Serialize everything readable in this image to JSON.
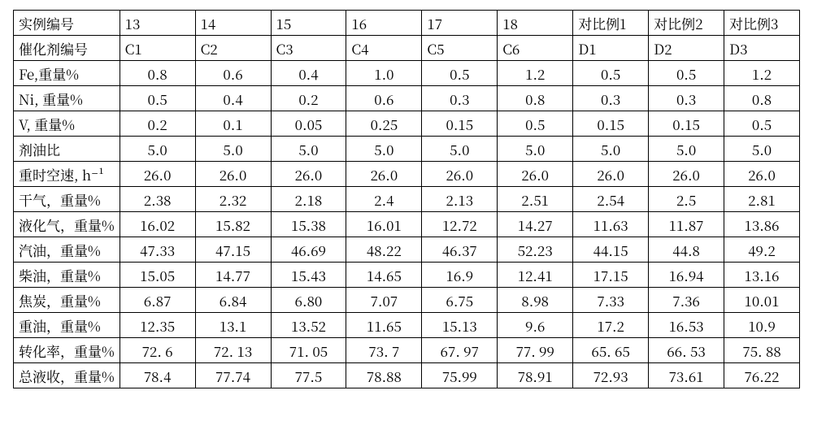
{
  "type": "table",
  "font_family": "SimSun / serif CJK",
  "font_size_pt": 13,
  "border_color": "#000000",
  "background_color": "#ffffff",
  "text_color": "#000000",
  "column_count": 10,
  "column_widths_pct": [
    13.5,
    9.6,
    9.6,
    9.6,
    9.6,
    9.6,
    9.6,
    9.6,
    9.6,
    9.6
  ],
  "column_align": [
    "left",
    "center",
    "center",
    "center",
    "center",
    "center",
    "center",
    "center",
    "center",
    "center"
  ],
  "rows": [
    {
      "label": "实例编号",
      "cells": [
        "13",
        "14",
        "15",
        "16",
        "17",
        "18",
        "对比例1",
        "对比例2",
        "对比例3"
      ],
      "align": "left"
    },
    {
      "label": "催化剂编号",
      "cells": [
        "C1",
        "C2",
        "C3",
        "C4",
        "C5",
        "C6",
        "D1",
        "D2",
        "D3"
      ],
      "align": "left"
    },
    {
      "label": "Fe,重量%",
      "cells": [
        "0.8",
        "0.6",
        "0.4",
        "1.0",
        "0.5",
        "1.2",
        "0.5",
        "0.5",
        "1.2"
      ],
      "align": "center"
    },
    {
      "label": "Ni, 重量%",
      "cells": [
        "0.5",
        "0.4",
        "0.2",
        "0.6",
        "0.3",
        "0.8",
        "0.3",
        "0.3",
        "0.8"
      ],
      "align": "center"
    },
    {
      "label": "V, 重量%",
      "cells": [
        "0.2",
        "0.1",
        "0.05",
        "0.25",
        "0.15",
        "0.5",
        "0.15",
        "0.15",
        "0.5"
      ],
      "align": "center"
    },
    {
      "label": "剂油比",
      "cells": [
        "5.0",
        "5.0",
        "5.0",
        "5.0",
        "5.0",
        "5.0",
        "5.0",
        "5.0",
        "5.0"
      ],
      "align": "center"
    },
    {
      "label": "重时空速, h⁻¹",
      "cells": [
        "26.0",
        "26.0",
        "26.0",
        "26.0",
        "26.0",
        "26.0",
        "26.0",
        "26.0",
        "26.0"
      ],
      "align": "center"
    },
    {
      "label": "干气，重量%",
      "cells": [
        "2.38",
        "2.32",
        "2.18",
        "2.4",
        "2.13",
        "2.51",
        "2.54",
        "2.5",
        "2.81"
      ],
      "align": "center"
    },
    {
      "label": "液化气，重量%",
      "cells": [
        "16.02",
        "15.82",
        "15.38",
        "16.01",
        "12.72",
        "14.27",
        "11.63",
        "11.87",
        "13.86"
      ],
      "align": "center"
    },
    {
      "label": "汽油，重量%",
      "cells": [
        "47.33",
        "47.15",
        "46.69",
        "48.22",
        "46.37",
        "52.23",
        "44.15",
        "44.8",
        "49.2"
      ],
      "align": "center"
    },
    {
      "label": "柴油，重量%",
      "cells": [
        "15.05",
        "14.77",
        "15.43",
        "14.65",
        "16.9",
        "12.41",
        "17.15",
        "16.94",
        "13.16"
      ],
      "align": "center"
    },
    {
      "label": "焦炭，重量%",
      "cells": [
        "6.87",
        "6.84",
        "6.80",
        "7.07",
        "6.75",
        "8.98",
        "7.33",
        "7.36",
        "10.01"
      ],
      "align": "center"
    },
    {
      "label": "重油，重量%",
      "cells": [
        "12.35",
        "13.1",
        "13.52",
        "11.65",
        "15.13",
        "9.6",
        "17.2",
        "16.53",
        "10.9"
      ],
      "align": "center"
    },
    {
      "label": "转化率，重量%",
      "cells": [
        "72. 6",
        "72. 13",
        "71. 05",
        "73. 7",
        "67. 97",
        "77. 99",
        "65. 65",
        "66. 53",
        "75. 88"
      ],
      "align": "center"
    },
    {
      "label": "总液收，重量%",
      "cells": [
        "78.4",
        "77.74",
        "77.5",
        "78.88",
        "75.99",
        "78.91",
        "72.93",
        "73.61",
        "76.22"
      ],
      "align": "center"
    }
  ]
}
